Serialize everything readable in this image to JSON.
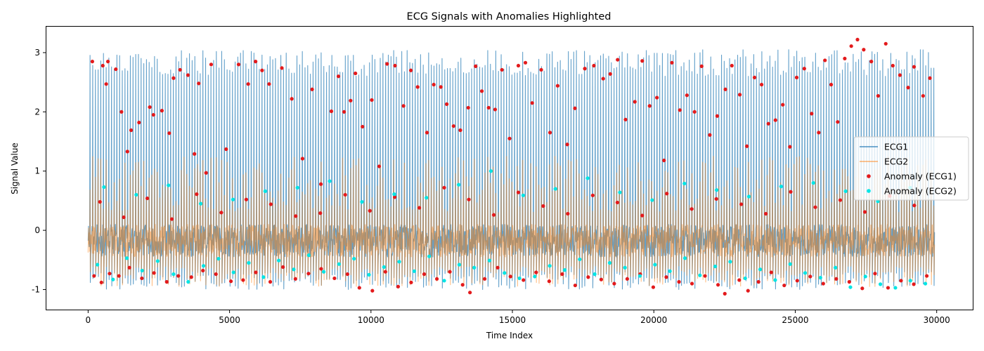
{
  "chart_data": {
    "type": "line",
    "title": "ECG Signals with Anomalies Highlighted",
    "xlabel": "Time Index",
    "ylabel": "Signal Value",
    "xlim": [
      -1500,
      31300
    ],
    "ylim": [
      -1.35,
      3.45
    ],
    "x_ticks": [
      0,
      5000,
      10000,
      15000,
      20000,
      25000,
      30000
    ],
    "y_ticks": [
      -1,
      0,
      1,
      2,
      3
    ],
    "grid": false,
    "legend_position": "center-right",
    "x_range": [
      0,
      29900
    ],
    "series": [
      {
        "name": "ECG1",
        "kind": "line",
        "color": "#1f77b4",
        "opacity": 0.7,
        "peak_range": [
          2.6,
          3.05
        ],
        "trough_range": [
          -1.0,
          -0.7
        ],
        "baseline_range": [
          -0.45,
          0.1
        ]
      },
      {
        "name": "ECG2",
        "kind": "line",
        "color": "#ff7f0e",
        "opacity": 0.5,
        "peak_range": [
          0.3,
          1.25
        ],
        "trough_range": [
          -0.95,
          -0.6
        ],
        "baseline_range": [
          -0.45,
          0.1
        ]
      },
      {
        "name": "Anomaly (ECG1)",
        "kind": "scatter",
        "color": "#e31a1c",
        "points": [
          [
            150,
            2.85
          ],
          [
            520,
            2.78
          ],
          [
            640,
            2.47
          ],
          [
            700,
            2.85
          ],
          [
            980,
            2.72
          ],
          [
            1180,
            2.0
          ],
          [
            1390,
            1.33
          ],
          [
            1520,
            1.69
          ],
          [
            1800,
            1.82
          ],
          [
            2180,
            2.08
          ],
          [
            2310,
            1.95
          ],
          [
            2610,
            2.02
          ],
          [
            2870,
            1.64
          ],
          [
            3020,
            2.57
          ],
          [
            3250,
            2.71
          ],
          [
            3530,
            2.62
          ],
          [
            3760,
            1.29
          ],
          [
            3910,
            2.48
          ],
          [
            4170,
            0.97
          ],
          [
            4350,
            2.8
          ],
          [
            4880,
            1.37
          ],
          [
            5320,
            2.8
          ],
          [
            5660,
            2.47
          ],
          [
            5920,
            2.85
          ],
          [
            6150,
            2.7
          ],
          [
            6400,
            2.47
          ],
          [
            6850,
            2.74
          ],
          [
            7200,
            2.22
          ],
          [
            7580,
            1.21
          ],
          [
            7920,
            2.38
          ],
          [
            8230,
            0.78
          ],
          [
            8600,
            2.01
          ],
          [
            8850,
            2.6
          ],
          [
            9050,
            2.0
          ],
          [
            9280,
            2.19
          ],
          [
            9450,
            2.65
          ],
          [
            9700,
            1.75
          ],
          [
            10030,
            2.2
          ],
          [
            10290,
            1.08
          ],
          [
            10570,
            2.81
          ],
          [
            10850,
            2.78
          ],
          [
            11150,
            2.1
          ],
          [
            11410,
            2.7
          ],
          [
            11650,
            2.42
          ],
          [
            11980,
            1.65
          ],
          [
            12220,
            2.46
          ],
          [
            12470,
            2.42
          ],
          [
            12680,
            2.13
          ],
          [
            12920,
            1.76
          ],
          [
            13160,
            1.69
          ],
          [
            13440,
            2.07
          ],
          [
            13700,
            2.77
          ],
          [
            13920,
            2.35
          ],
          [
            14160,
            2.07
          ],
          [
            14390,
            2.04
          ],
          [
            14630,
            2.71
          ],
          [
            14900,
            1.55
          ],
          [
            15210,
            2.78
          ],
          [
            15460,
            2.83
          ],
          [
            15700,
            2.15
          ],
          [
            16020,
            2.71
          ],
          [
            16330,
            1.65
          ],
          [
            16600,
            2.44
          ],
          [
            16940,
            1.45
          ],
          [
            17210,
            2.06
          ],
          [
            17560,
            2.73
          ],
          [
            17880,
            2.78
          ],
          [
            18210,
            2.56
          ],
          [
            18460,
            2.64
          ],
          [
            18720,
            2.88
          ],
          [
            19000,
            1.87
          ],
          [
            19330,
            2.17
          ],
          [
            19590,
            2.86
          ],
          [
            19850,
            2.1
          ],
          [
            20110,
            2.24
          ],
          [
            20360,
            1.18
          ],
          [
            20640,
            2.83
          ],
          [
            20920,
            2.03
          ],
          [
            21170,
            2.28
          ],
          [
            21440,
            2.0
          ],
          [
            21690,
            2.77
          ],
          [
            21980,
            1.61
          ],
          [
            22240,
            1.93
          ],
          [
            22530,
            2.38
          ],
          [
            22760,
            2.78
          ],
          [
            23040,
            2.29
          ],
          [
            23290,
            1.42
          ],
          [
            23560,
            2.58
          ],
          [
            23810,
            2.46
          ],
          [
            24050,
            1.8
          ],
          [
            24300,
            1.86
          ],
          [
            24560,
            2.12
          ],
          [
            24810,
            1.41
          ],
          [
            25050,
            2.58
          ],
          [
            25320,
            2.73
          ],
          [
            25580,
            1.97
          ],
          [
            25830,
            1.65
          ],
          [
            26050,
            2.87
          ],
          [
            26270,
            2.46
          ],
          [
            26500,
            1.83
          ],
          [
            26750,
            2.9
          ],
          [
            26980,
            3.11
          ],
          [
            27200,
            3.22
          ],
          [
            27420,
            3.05
          ],
          [
            27690,
            2.85
          ],
          [
            27930,
            2.27
          ],
          [
            28200,
            3.15
          ],
          [
            28450,
            2.78
          ],
          [
            28700,
            2.62
          ],
          [
            28990,
            2.41
          ],
          [
            29200,
            2.76
          ],
          [
            29520,
            2.27
          ],
          [
            29760,
            2.57
          ],
          [
            210,
            -0.77
          ],
          [
            470,
            -0.88
          ],
          [
            760,
            -0.73
          ],
          [
            1090,
            -0.77
          ],
          [
            1460,
            -0.63
          ],
          [
            1900,
            -0.81
          ],
          [
            2330,
            -0.72
          ],
          [
            2780,
            -0.87
          ],
          [
            3190,
            -0.77
          ],
          [
            3650,
            -0.79
          ],
          [
            4060,
            -0.68
          ],
          [
            4520,
            -0.74
          ],
          [
            5050,
            -0.86
          ],
          [
            5480,
            -0.84
          ],
          [
            5930,
            -0.71
          ],
          [
            6440,
            -0.87
          ],
          [
            6890,
            -0.62
          ],
          [
            7330,
            -0.82
          ],
          [
            7790,
            -0.73
          ],
          [
            8240,
            -0.65
          ],
          [
            8710,
            -0.81
          ],
          [
            9170,
            -0.74
          ],
          [
            9590,
            -0.97
          ],
          [
            10050,
            -1.02
          ],
          [
            10510,
            -0.7
          ],
          [
            10960,
            -0.95
          ],
          [
            11420,
            -0.88
          ],
          [
            11880,
            -0.74
          ],
          [
            12330,
            -0.82
          ],
          [
            12790,
            -0.7
          ],
          [
            13240,
            -0.92
          ],
          [
            13500,
            -1.05
          ],
          [
            14020,
            -0.82
          ],
          [
            14480,
            -0.63
          ],
          [
            14930,
            -0.78
          ],
          [
            15390,
            -0.84
          ],
          [
            15840,
            -0.71
          ],
          [
            16300,
            -0.86
          ],
          [
            16760,
            -0.74
          ],
          [
            17220,
            -0.93
          ],
          [
            17680,
            -0.79
          ],
          [
            18140,
            -0.83
          ],
          [
            18600,
            -0.9
          ],
          [
            19060,
            -0.82
          ],
          [
            19520,
            -0.74
          ],
          [
            19980,
            -0.96
          ],
          [
            20440,
            -0.79
          ],
          [
            20890,
            -0.87
          ],
          [
            21350,
            -0.9
          ],
          [
            21810,
            -0.77
          ],
          [
            22270,
            -0.92
          ],
          [
            22510,
            -1.07
          ],
          [
            23020,
            -0.84
          ],
          [
            23330,
            -1.02
          ],
          [
            23700,
            -0.87
          ],
          [
            24150,
            -0.71
          ],
          [
            24610,
            -0.93
          ],
          [
            25070,
            -0.85
          ],
          [
            25530,
            -0.78
          ],
          [
            25990,
            -0.9
          ],
          [
            26450,
            -0.82
          ],
          [
            26910,
            -0.87
          ],
          [
            27370,
            -0.98
          ],
          [
            27820,
            -0.73
          ],
          [
            28280,
            -0.97
          ],
          [
            28740,
            -0.85
          ],
          [
            29190,
            -0.91
          ],
          [
            29650,
            -0.77
          ],
          [
            420,
            0.48
          ],
          [
            1260,
            0.22
          ],
          [
            2090,
            0.54
          ],
          [
            2960,
            0.19
          ],
          [
            3840,
            0.61
          ],
          [
            4710,
            0.3
          ],
          [
            5590,
            0.52
          ],
          [
            6460,
            0.44
          ],
          [
            7340,
            0.24
          ],
          [
            8210,
            0.29
          ],
          [
            9090,
            0.6
          ],
          [
            9960,
            0.33
          ],
          [
            10840,
            0.56
          ],
          [
            11710,
            0.38
          ],
          [
            12590,
            0.72
          ],
          [
            13460,
            0.52
          ],
          [
            14340,
            0.26
          ],
          [
            15210,
            0.64
          ],
          [
            16090,
            0.41
          ],
          [
            16960,
            0.28
          ],
          [
            17840,
            0.59
          ],
          [
            18710,
            0.47
          ],
          [
            19590,
            0.25
          ],
          [
            20460,
            0.62
          ],
          [
            21340,
            0.36
          ],
          [
            22210,
            0.53
          ],
          [
            23090,
            0.44
          ],
          [
            23960,
            0.28
          ],
          [
            24840,
            0.65
          ],
          [
            25710,
            0.39
          ],
          [
            26590,
            0.51
          ],
          [
            27460,
            0.31
          ],
          [
            28340,
            0.58
          ],
          [
            29210,
            0.42
          ]
        ]
      },
      {
        "name": "Anomaly (ECG2)",
        "kind": "scatter",
        "color": "#00e5e5",
        "points": [
          [
            330,
            -0.58
          ],
          [
            880,
            -0.83
          ],
          [
            1370,
            -0.47
          ],
          [
            1910,
            -0.68
          ],
          [
            2460,
            -0.52
          ],
          [
            3020,
            -0.74
          ],
          [
            3540,
            -0.87
          ],
          [
            4080,
            -0.6
          ],
          [
            4610,
            -0.48
          ],
          [
            5140,
            -0.71
          ],
          [
            5680,
            -0.55
          ],
          [
            6200,
            -0.79
          ],
          [
            6740,
            -0.51
          ],
          [
            7270,
            -0.66
          ],
          [
            7800,
            -0.42
          ],
          [
            8330,
            -0.7
          ],
          [
            8870,
            -0.57
          ],
          [
            9400,
            -0.48
          ],
          [
            9930,
            -0.75
          ],
          [
            10460,
            -0.62
          ],
          [
            11000,
            -0.53
          ],
          [
            11530,
            -0.69
          ],
          [
            12060,
            -0.44
          ],
          [
            12590,
            -0.85
          ],
          [
            13120,
            -0.58
          ],
          [
            13650,
            -0.63
          ],
          [
            14190,
            -0.51
          ],
          [
            14720,
            -0.72
          ],
          [
            15250,
            -0.81
          ],
          [
            15790,
            -0.78
          ],
          [
            16320,
            -0.6
          ],
          [
            16850,
            -0.67
          ],
          [
            17380,
            -0.49
          ],
          [
            17910,
            -0.74
          ],
          [
            18440,
            -0.55
          ],
          [
            18980,
            -0.63
          ],
          [
            19510,
            -0.77
          ],
          [
            20040,
            -0.58
          ],
          [
            20570,
            -0.69
          ],
          [
            21100,
            -0.47
          ],
          [
            21630,
            -0.76
          ],
          [
            22170,
            -0.61
          ],
          [
            22700,
            -0.53
          ],
          [
            23230,
            -0.81
          ],
          [
            23760,
            -0.66
          ],
          [
            24290,
            -0.84
          ],
          [
            24820,
            -0.57
          ],
          [
            25350,
            -0.72
          ],
          [
            25890,
            -0.8
          ],
          [
            26420,
            -0.63
          ],
          [
            26950,
            -0.96
          ],
          [
            27480,
            -0.78
          ],
          [
            28010,
            -0.91
          ],
          [
            28540,
            -0.97
          ],
          [
            29070,
            -0.85
          ],
          [
            29600,
            -0.9
          ],
          [
            560,
            0.73
          ],
          [
            1700,
            0.6
          ],
          [
            2840,
            0.76
          ],
          [
            3980,
            0.45
          ],
          [
            5120,
            0.52
          ],
          [
            6260,
            0.66
          ],
          [
            7400,
            0.72
          ],
          [
            8540,
            0.83
          ],
          [
            9680,
            0.48
          ],
          [
            10820,
            0.61
          ],
          [
            11960,
            0.55
          ],
          [
            13100,
            0.77
          ],
          [
            14240,
            1.0
          ],
          [
            15380,
            0.59
          ],
          [
            16520,
            0.7
          ],
          [
            17660,
            0.88
          ],
          [
            18800,
            0.64
          ],
          [
            19940,
            0.51
          ],
          [
            21080,
            0.79
          ],
          [
            22220,
            0.68
          ],
          [
            23360,
            0.57
          ],
          [
            24500,
            0.74
          ],
          [
            25640,
            0.8
          ],
          [
            26780,
            0.66
          ],
          [
            27920,
            0.49
          ],
          [
            29060,
            0.72
          ]
        ]
      }
    ]
  }
}
